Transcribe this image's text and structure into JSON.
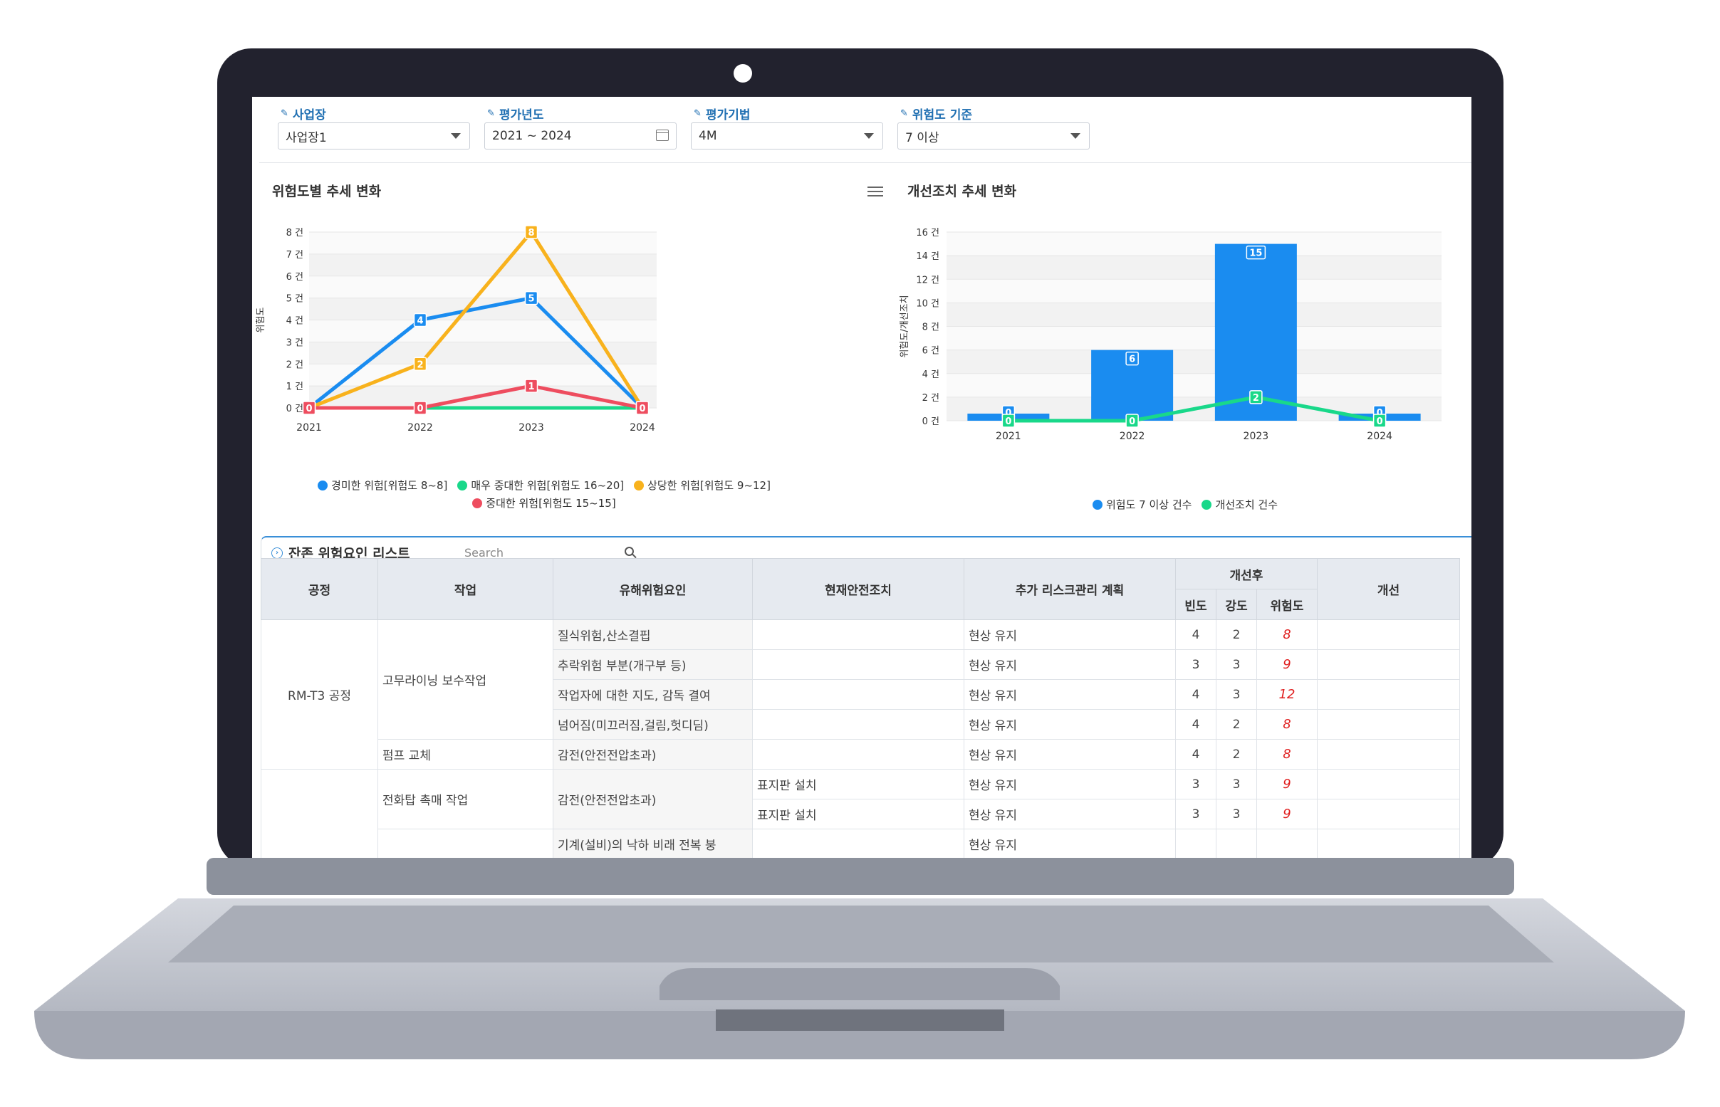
{
  "filters": [
    {
      "label": "사업장",
      "value": "사업장1",
      "kind": "select"
    },
    {
      "label": "평가년도",
      "value": "2021 ~ 2024",
      "kind": "date"
    },
    {
      "label": "평가기법",
      "value": "4M",
      "kind": "select"
    },
    {
      "label": "위험도 기준",
      "value": "7 이상",
      "kind": "select"
    }
  ],
  "colors": {
    "blue": "#1a8cf0",
    "green": "#19d88a",
    "orange": "#f8b21d",
    "red": "#ee4d5f",
    "frame": "#22222e",
    "base": "#c6cad3"
  },
  "chart_data": [
    {
      "type": "line",
      "title": "위험도별 추세 변화",
      "ylabel": "위험도",
      "x": [
        "2021",
        "2022",
        "2023",
        "2024"
      ],
      "y_ticks": [
        "0 건",
        "1 건",
        "2 건",
        "3 건",
        "4 건",
        "5 건",
        "6 건",
        "7 건",
        "8 건"
      ],
      "ylim": [
        0,
        8
      ],
      "series": [
        {
          "name": "경미한 위험[위험도 8~8]",
          "color": "#1a8cf0",
          "values": [
            0,
            4,
            5,
            0
          ],
          "labels": [
            "0",
            "4",
            "5",
            "0"
          ]
        },
        {
          "name": "매우 중대한 위험[위험도 16~20]",
          "color": "#19d88a",
          "values": [
            0,
            0,
            0,
            0
          ],
          "labels": [
            "0",
            "0",
            "0",
            "0"
          ]
        },
        {
          "name": "상당한 위험[위험도 9~12]",
          "color": "#f8b21d",
          "values": [
            0,
            2,
            8,
            0
          ],
          "labels": [
            "0",
            "2",
            "8",
            "0"
          ]
        },
        {
          "name": "중대한 위험[위험도 15~15]",
          "color": "#ee4d5f",
          "values": [
            0,
            0,
            1,
            0
          ],
          "labels": [
            "0",
            "0",
            "1",
            "0"
          ]
        }
      ],
      "legend": "bottom"
    },
    {
      "type": "bar",
      "title": "개선조치 추세 변화",
      "ylabel": "위험도/개선조치",
      "categories": [
        "2021",
        "2022",
        "2023",
        "2024"
      ],
      "y_ticks": [
        "0 건",
        "2 건",
        "4 건",
        "6 건",
        "8 건",
        "10 건",
        "12 건",
        "14 건",
        "16 건"
      ],
      "ylim": [
        0,
        16
      ],
      "series": [
        {
          "name": "위험도 7 이상 건수",
          "color": "#1a8cf0",
          "kind": "bar",
          "values": [
            0,
            6,
            15,
            0
          ],
          "labels": [
            "0",
            "6",
            "15",
            "0"
          ]
        },
        {
          "name": "개선조치 건수",
          "color": "#19d88a",
          "kind": "line",
          "values": [
            0,
            0,
            2,
            0
          ],
          "labels": [
            "0",
            "0",
            "2",
            "0"
          ]
        }
      ],
      "legend": "bottom"
    }
  ],
  "list": {
    "title": "잔존 위험요인 리스트",
    "search_placeholder": "Search",
    "headers": {
      "process": "공정",
      "task": "작업",
      "hazard": "유해위험요인",
      "current": "현재안전조치",
      "plan": "추가 리스크관리 계획",
      "after": "개선후",
      "freq": "빈도",
      "severity": "강도",
      "risk": "위험도",
      "improve": "개선"
    },
    "rows": [
      {
        "process": "RM-T3 공정",
        "task": "고무라이닝 보수작업",
        "hazard": "질식위험,산소결핍",
        "current": "",
        "plan": "현상 유지",
        "freq": "4",
        "severity": "2",
        "risk": "8"
      },
      {
        "process": "",
        "task": "",
        "hazard": "추락위험 부분(개구부 등)",
        "current": "",
        "plan": "현상 유지",
        "freq": "3",
        "severity": "3",
        "risk": "9"
      },
      {
        "process": "",
        "task": "",
        "hazard": "작업자에 대한 지도, 감독 결여",
        "current": "",
        "plan": "현상 유지",
        "freq": "4",
        "severity": "3",
        "risk": "12"
      },
      {
        "process": "",
        "task": "",
        "hazard": "넘어짐(미끄러짐,걸림,헛디딤)",
        "current": "",
        "plan": "현상 유지",
        "freq": "4",
        "severity": "2",
        "risk": "8"
      },
      {
        "process": "",
        "task": "펌프 교체",
        "hazard": "감전(안전전압초과)",
        "current": "",
        "plan": "현상 유지",
        "freq": "4",
        "severity": "2",
        "risk": "8"
      },
      {
        "process": "",
        "task": "전화탑 촉매 작업",
        "hazard": "감전(안전전압초과)",
        "current": "표지판 설치",
        "plan": "현상 유지",
        "freq": "3",
        "severity": "3",
        "risk": "9"
      },
      {
        "process": "",
        "task": "",
        "hazard": "",
        "current": "표지판 설치",
        "plan": "현상 유지",
        "freq": "3",
        "severity": "3",
        "risk": "9"
      },
      {
        "process": "",
        "task": "",
        "hazard": "기계(설비)의 낙하 비래 전복 붕",
        "current": "",
        "plan": "현상 유지",
        "freq": "",
        "severity": "",
        "risk": ""
      }
    ]
  }
}
